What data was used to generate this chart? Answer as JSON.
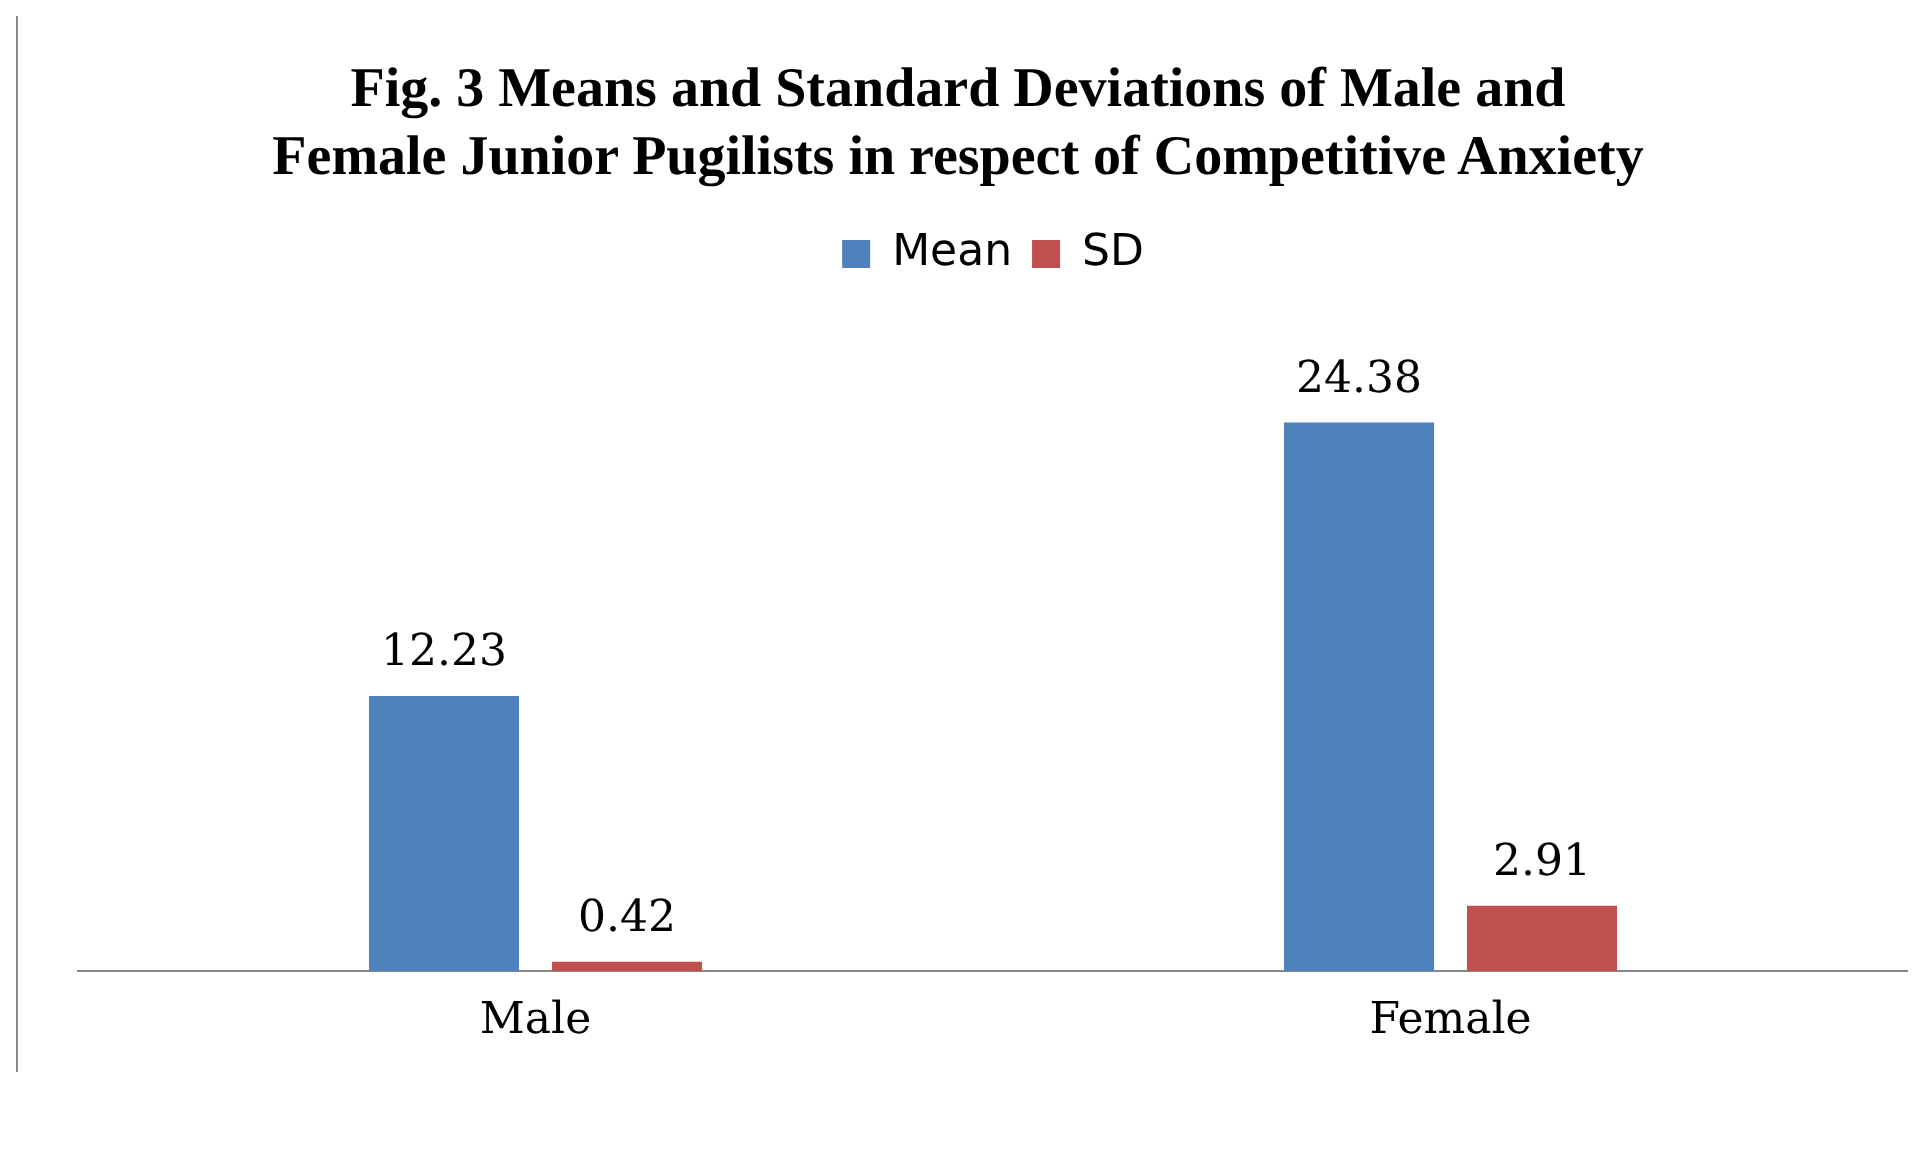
{
  "chart_data": {
    "type": "bar",
    "title": "Fig. 3 Means and Standard Deviations of Male and Female Junior Pugilists in respect of Competitive Anxiety",
    "categories": [
      "Male",
      "Female"
    ],
    "series": [
      {
        "name": "Mean",
        "color": "#4f81bd",
        "values": [
          12.23,
          24.38
        ]
      },
      {
        "name": "SD",
        "color": "#c0504d",
        "values": [
          0.42,
          2.91
        ]
      }
    ],
    "data_labels": true,
    "legend": "top",
    "grid": false
  }
}
